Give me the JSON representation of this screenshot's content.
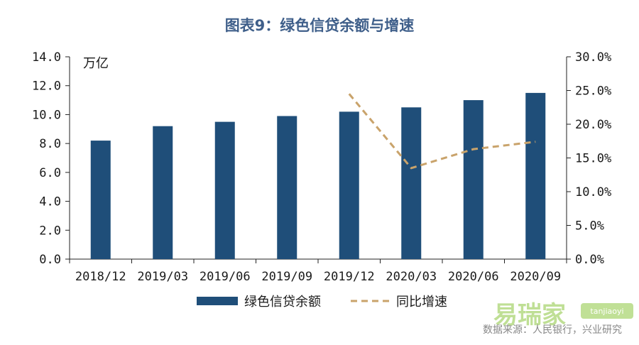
{
  "chart_data": {
    "type": "bar",
    "title": "图表9：绿色信贷余额与增速",
    "left_unit": "万亿",
    "categories": [
      "2018/12",
      "2019/03",
      "2019/06",
      "2019/09",
      "2019/12",
      "2020/03",
      "2020/06",
      "2020/09"
    ],
    "series": [
      {
        "name": "绿色信贷余额",
        "type": "bar",
        "axis": "left",
        "color": "#1f4e79",
        "values": [
          8.2,
          9.2,
          9.5,
          9.9,
          10.2,
          10.5,
          11.0,
          11.5
        ]
      },
      {
        "name": "同比增速",
        "type": "line",
        "style": "dashed",
        "axis": "right",
        "color": "#c9a36b",
        "values": [
          null,
          null,
          null,
          null,
          24.5,
          13.5,
          16.3,
          17.4
        ]
      }
    ],
    "ylim_left": [
      0,
      14
    ],
    "yticks_left": [
      "0.0",
      "2.0",
      "4.0",
      "6.0",
      "8.0",
      "10.0",
      "12.0",
      "14.0"
    ],
    "ylim_right": [
      0,
      30
    ],
    "yticks_right": [
      "0.0%",
      "5.0%",
      "10.0%",
      "15.0%",
      "20.0%",
      "25.0%",
      "30.0%"
    ],
    "legend_position": "bottom",
    "grid": false,
    "source": "数据来源：人民银行，兴业研究"
  },
  "watermark": {
    "text": "易瑞家",
    "tag": "tanjiaoyi"
  }
}
